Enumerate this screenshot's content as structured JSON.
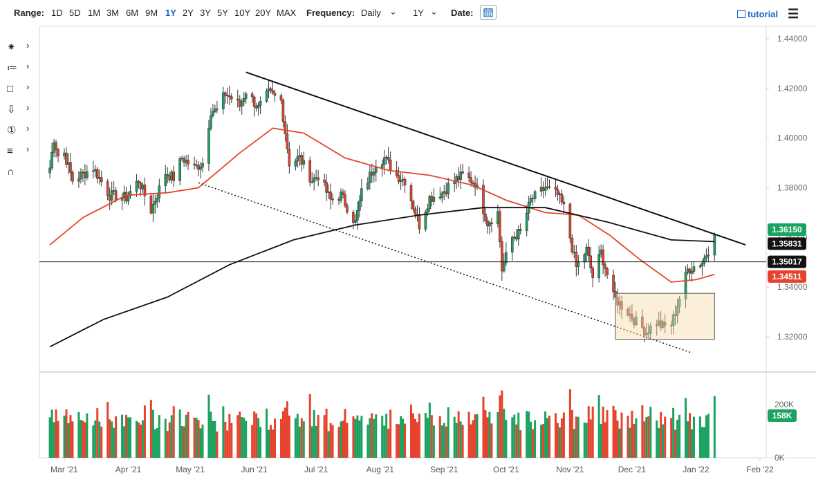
{
  "toolbar": {
    "range_label": "Range:",
    "ranges": [
      "1D",
      "5D",
      "1M",
      "3M",
      "6M",
      "9M",
      "1Y",
      "2Y",
      "3Y",
      "5Y",
      "10Y",
      "20Y",
      "MAX"
    ],
    "active_range": "1Y",
    "frequency_label": "Frequency:",
    "frequency_value": "Daily",
    "period_value": "1Y",
    "date_label": "Date:",
    "tutorial_label": "tutorial"
  },
  "tools": [
    "crosshair-icon",
    "drawing-list-icon",
    "rectangle-icon",
    "arrow-down-icon",
    "annotation-number-icon",
    "fibonacci-icon",
    "magnet-icon"
  ],
  "chart_data": {
    "type": "candlestick",
    "x_axis": {
      "tick_labels": [
        "Mar '21",
        "Apr '21",
        "May '21",
        "Jun '21",
        "Jul '21",
        "Aug '21",
        "Sep '21",
        "Oct '21",
        "Nov '21",
        "Dec '21",
        "Jan '22",
        "Feb '22"
      ]
    },
    "y_axis": {
      "tick_labels": [
        "1.44000",
        "1.42000",
        "1.40000",
        "1.38000",
        "1.36000",
        "1.34000",
        "1.32000"
      ],
      "ylim": [
        1.31,
        1.445
      ]
    },
    "price_anchor_points": [
      {
        "date": "2021-02-22",
        "close": 1.388
      },
      {
        "date": "2021-02-24",
        "close": 1.4
      },
      {
        "date": "2021-02-26",
        "close": 1.393
      },
      {
        "date": "2021-03-01",
        "close": 1.394
      },
      {
        "date": "2021-03-05",
        "close": 1.383
      },
      {
        "date": "2021-03-15",
        "close": 1.388
      },
      {
        "date": "2021-03-23",
        "close": 1.377
      },
      {
        "date": "2021-03-31",
        "close": 1.376
      },
      {
        "date": "2021-04-06",
        "close": 1.383
      },
      {
        "date": "2021-04-12",
        "close": 1.371
      },
      {
        "date": "2021-04-19",
        "close": 1.386
      },
      {
        "date": "2021-04-23",
        "close": 1.384
      },
      {
        "date": "2021-04-27",
        "close": 1.392
      },
      {
        "date": "2021-05-03",
        "close": 1.388
      },
      {
        "date": "2021-05-07",
        "close": 1.39
      },
      {
        "date": "2021-05-11",
        "close": 1.411
      },
      {
        "date": "2021-05-14",
        "close": 1.411
      },
      {
        "date": "2021-05-18",
        "close": 1.418
      },
      {
        "date": "2021-05-21",
        "close": 1.416
      },
      {
        "date": "2021-05-25",
        "close": 1.413
      },
      {
        "date": "2021-05-28",
        "close": 1.419
      },
      {
        "date": "2021-06-03",
        "close": 1.412
      },
      {
        "date": "2021-06-08",
        "close": 1.418
      },
      {
        "date": "2021-06-14",
        "close": 1.415
      },
      {
        "date": "2021-06-18",
        "close": 1.39
      },
      {
        "date": "2021-06-23",
        "close": 1.392
      },
      {
        "date": "2021-06-29",
        "close": 1.383
      },
      {
        "date": "2021-07-02",
        "close": 1.385
      },
      {
        "date": "2021-07-08",
        "close": 1.375
      },
      {
        "date": "2021-07-13",
        "close": 1.377
      },
      {
        "date": "2021-07-20",
        "close": 1.366
      },
      {
        "date": "2021-07-23",
        "close": 1.378
      },
      {
        "date": "2021-07-30",
        "close": 1.39
      },
      {
        "date": "2021-08-03",
        "close": 1.392
      },
      {
        "date": "2021-08-09",
        "close": 1.385
      },
      {
        "date": "2021-08-13",
        "close": 1.383
      },
      {
        "date": "2021-08-20",
        "close": 1.365
      },
      {
        "date": "2021-08-25",
        "close": 1.376
      },
      {
        "date": "2021-08-31",
        "close": 1.378
      },
      {
        "date": "2021-09-06",
        "close": 1.383
      },
      {
        "date": "2021-09-10",
        "close": 1.385
      },
      {
        "date": "2021-09-16",
        "close": 1.382
      },
      {
        "date": "2021-09-22",
        "close": 1.366
      },
      {
        "date": "2021-09-27",
        "close": 1.37
      },
      {
        "date": "2021-09-29",
        "close": 1.347
      },
      {
        "date": "2021-10-04",
        "close": 1.36
      },
      {
        "date": "2021-10-08",
        "close": 1.362
      },
      {
        "date": "2021-10-13",
        "close": 1.375
      },
      {
        "date": "2021-10-20",
        "close": 1.38
      },
      {
        "date": "2021-10-26",
        "close": 1.377
      },
      {
        "date": "2021-10-29",
        "close": 1.372
      },
      {
        "date": "2021-11-04",
        "close": 1.348
      },
      {
        "date": "2021-11-09",
        "close": 1.355
      },
      {
        "date": "2021-11-12",
        "close": 1.344
      },
      {
        "date": "2021-11-16",
        "close": 1.354
      },
      {
        "date": "2021-11-22",
        "close": 1.336
      },
      {
        "date": "2021-11-29",
        "close": 1.33
      },
      {
        "date": "2021-12-03",
        "close": 1.326
      },
      {
        "date": "2021-12-08",
        "close": 1.322
      },
      {
        "date": "2021-12-13",
        "close": 1.326
      },
      {
        "date": "2021-12-16",
        "close": 1.324
      },
      {
        "date": "2021-12-20",
        "close": 1.325
      },
      {
        "date": "2021-12-22",
        "close": 1.33
      },
      {
        "date": "2021-12-28",
        "close": 1.347
      },
      {
        "date": "2022-01-04",
        "close": 1.35
      },
      {
        "date": "2022-01-07",
        "close": 1.355
      },
      {
        "date": "2022-01-10",
        "close": 1.361
      }
    ],
    "series": [
      {
        "name": "50-day moving average",
        "color": "#e5432d",
        "points": [
          {
            "date": "2021-02-22",
            "y": 1.357
          },
          {
            "date": "2021-03-10",
            "y": 1.368
          },
          {
            "date": "2021-03-31",
            "y": 1.377
          },
          {
            "date": "2021-04-20",
            "y": 1.378
          },
          {
            "date": "2021-05-05",
            "y": 1.38
          },
          {
            "date": "2021-05-25",
            "y": 1.394
          },
          {
            "date": "2021-06-10",
            "y": 1.404
          },
          {
            "date": "2021-06-25",
            "y": 1.402
          },
          {
            "date": "2021-07-15",
            "y": 1.392
          },
          {
            "date": "2021-08-05",
            "y": 1.387
          },
          {
            "date": "2021-08-25",
            "y": 1.385
          },
          {
            "date": "2021-09-15",
            "y": 1.381
          },
          {
            "date": "2021-10-01",
            "y": 1.375
          },
          {
            "date": "2021-10-20",
            "y": 1.37
          },
          {
            "date": "2021-11-05",
            "y": 1.369
          },
          {
            "date": "2021-11-20",
            "y": 1.361
          },
          {
            "date": "2021-12-05",
            "y": 1.351
          },
          {
            "date": "2021-12-20",
            "y": 1.342
          },
          {
            "date": "2022-01-01",
            "y": 1.343
          },
          {
            "date": "2022-01-10",
            "y": 1.3451
          }
        ]
      },
      {
        "name": "200-day moving average",
        "color": "#111111",
        "points": [
          {
            "date": "2021-02-22",
            "y": 1.316
          },
          {
            "date": "2021-03-20",
            "y": 1.327
          },
          {
            "date": "2021-04-20",
            "y": 1.336
          },
          {
            "date": "2021-05-20",
            "y": 1.349
          },
          {
            "date": "2021-06-20",
            "y": 1.359
          },
          {
            "date": "2021-07-20",
            "y": 1.365
          },
          {
            "date": "2021-08-20",
            "y": 1.369
          },
          {
            "date": "2021-09-20",
            "y": 1.372
          },
          {
            "date": "2021-10-20",
            "y": 1.372
          },
          {
            "date": "2021-11-20",
            "y": 1.366
          },
          {
            "date": "2021-12-20",
            "y": 1.359
          },
          {
            "date": "2022-01-10",
            "y": 1.3583
          }
        ]
      }
    ],
    "annotations": [
      {
        "type": "trendline",
        "style": "solid",
        "from": {
          "date": "2021-05-28",
          "y": 1.4265
        },
        "to": {
          "date": "2022-01-25",
          "y": 1.357
        }
      },
      {
        "type": "trendline",
        "style": "dotted",
        "from": {
          "date": "2021-05-05",
          "y": 1.382
        },
        "to": {
          "date": "2021-12-30",
          "y": 1.3135
        }
      },
      {
        "type": "horizontal-line",
        "y": 1.35017
      },
      {
        "type": "rectangle",
        "from": {
          "date": "2021-11-23",
          "y": 1.3375
        },
        "to": {
          "date": "2022-01-10",
          "y": 1.319
        }
      }
    ],
    "price_labels": [
      {
        "text": "1.36150",
        "y": 1.3615,
        "color": "#1aa260"
      },
      {
        "text": "1.35831",
        "y": 1.35831,
        "color": "#111111"
      },
      {
        "text": "1.35017",
        "y": 1.35017,
        "color": "#111111"
      },
      {
        "text": "1.34511",
        "y": 1.34511,
        "color": "#e5432d"
      }
    ],
    "volume": {
      "y_tick_labels": [
        "200K",
        "0K"
      ],
      "ylim": [
        0,
        290000
      ],
      "last_value_label": "158K",
      "last_value": 158000,
      "up_color": "#1aa260",
      "down_color": "#e5432d"
    }
  }
}
